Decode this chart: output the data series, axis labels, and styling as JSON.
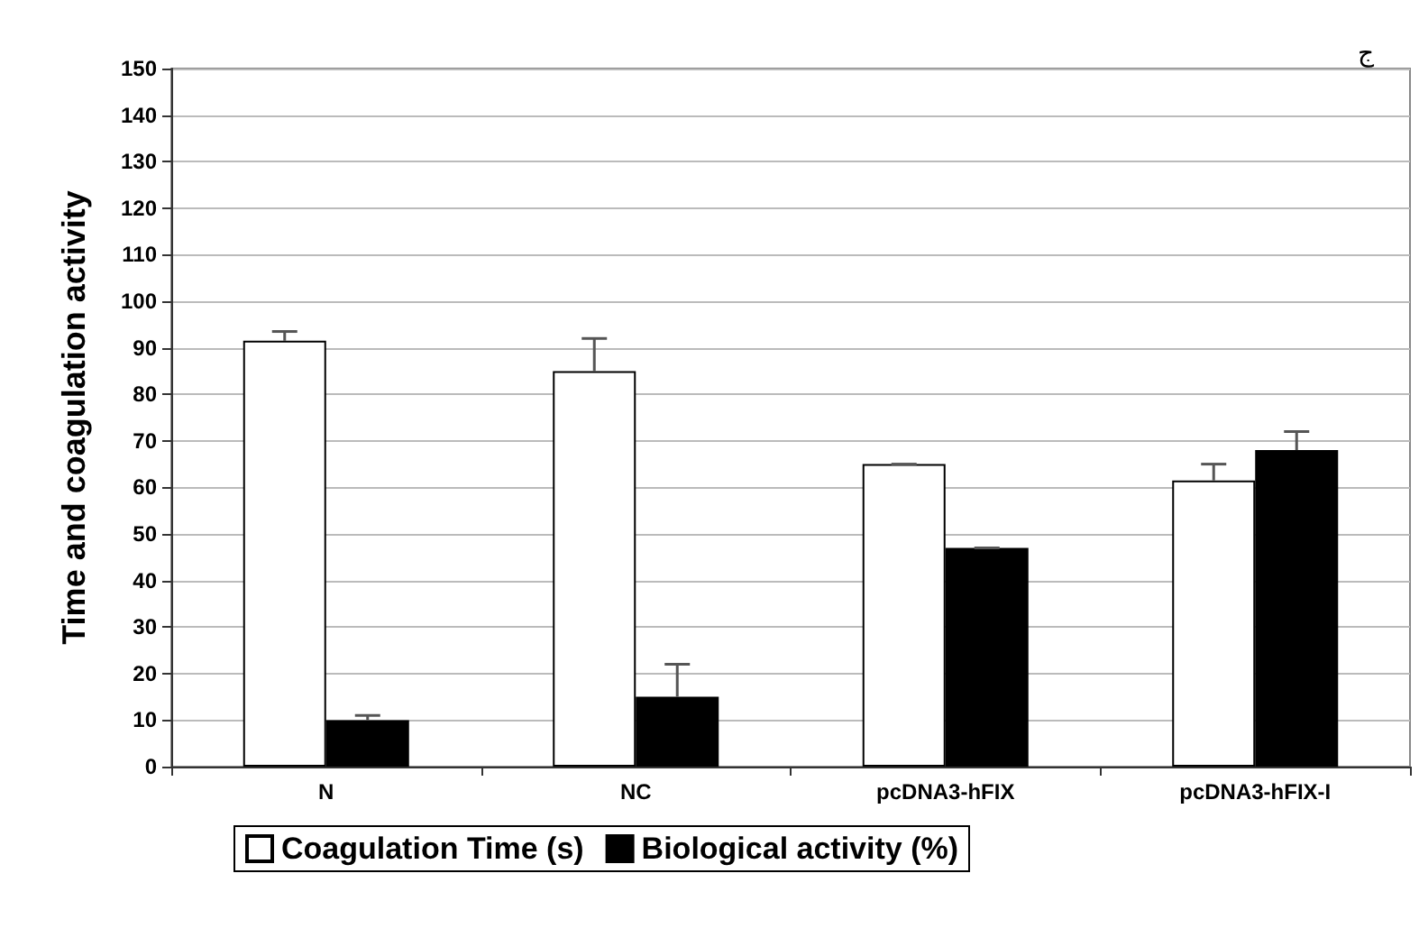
{
  "chart_data": {
    "type": "bar",
    "ylabel": "Time and coagulation activity",
    "categories": [
      "N",
      "NC",
      "pcDNA3-hFIX",
      "pcDNA3-hFIX-I"
    ],
    "series": [
      {
        "name": "Coagulation Time (s)",
        "color": "#ffffff",
        "values": [
          91.5,
          85,
          65,
          61.5
        ],
        "errors": [
          [
            91.5,
            93.5
          ],
          [
            85,
            92
          ],
          [
            65,
            65
          ],
          [
            61.5,
            65
          ]
        ]
      },
      {
        "name": "Biological activity (%)",
        "color": "#000000",
        "values": [
          10,
          15,
          47,
          68
        ],
        "errors": [
          [
            10,
            11
          ],
          [
            15,
            22
          ],
          [
            47,
            47
          ],
          [
            68,
            72
          ]
        ]
      }
    ],
    "ylim": [
      0,
      150
    ],
    "yticks": [
      0,
      10,
      20,
      30,
      40,
      50,
      60,
      70,
      80,
      90,
      100,
      110,
      120,
      130,
      140,
      150
    ],
    "grid": "y",
    "legend": "bottom",
    "annotations": [
      "ج"
    ]
  }
}
